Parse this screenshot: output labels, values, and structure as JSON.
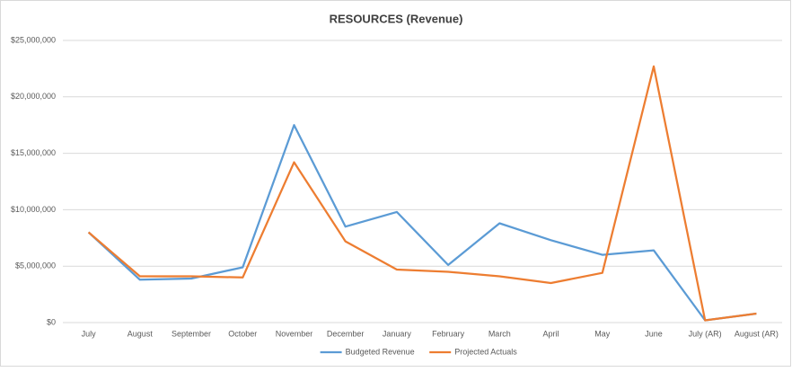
{
  "chart_data": {
    "type": "line",
    "title": "RESOURCES (Revenue)",
    "categories": [
      "July",
      "August",
      "September",
      "October",
      "November",
      "December",
      "January",
      "February",
      "March",
      "April",
      "May",
      "June",
      "July (AR)",
      "August (AR)"
    ],
    "series": [
      {
        "name": "Budgeted Revenue",
        "color": "#5b9bd5",
        "values": [
          8000000,
          3800000,
          3900000,
          4900000,
          17500000,
          8500000,
          9800000,
          5100000,
          8800000,
          7300000,
          6000000,
          6400000,
          200000,
          800000
        ]
      },
      {
        "name": "Projected Actuals",
        "color": "#ed7d31",
        "values": [
          8000000,
          4100000,
          4100000,
          4000000,
          14200000,
          7200000,
          4700000,
          4500000,
          4100000,
          3500000,
          4400000,
          22700000,
          200000,
          800000
        ]
      }
    ],
    "ylim": [
      0,
      25000000
    ],
    "yticks": [
      {
        "value": 0,
        "label": "$0"
      },
      {
        "value": 5000000,
        "label": "$5,000,000"
      },
      {
        "value": 10000000,
        "label": "$10,000,000"
      },
      {
        "value": 15000000,
        "label": "$15,000,000"
      },
      {
        "value": 20000000,
        "label": "$20,000,000"
      },
      {
        "value": 25000000,
        "label": "$25,000,000"
      }
    ],
    "grid": true,
    "legend": "bottom"
  }
}
